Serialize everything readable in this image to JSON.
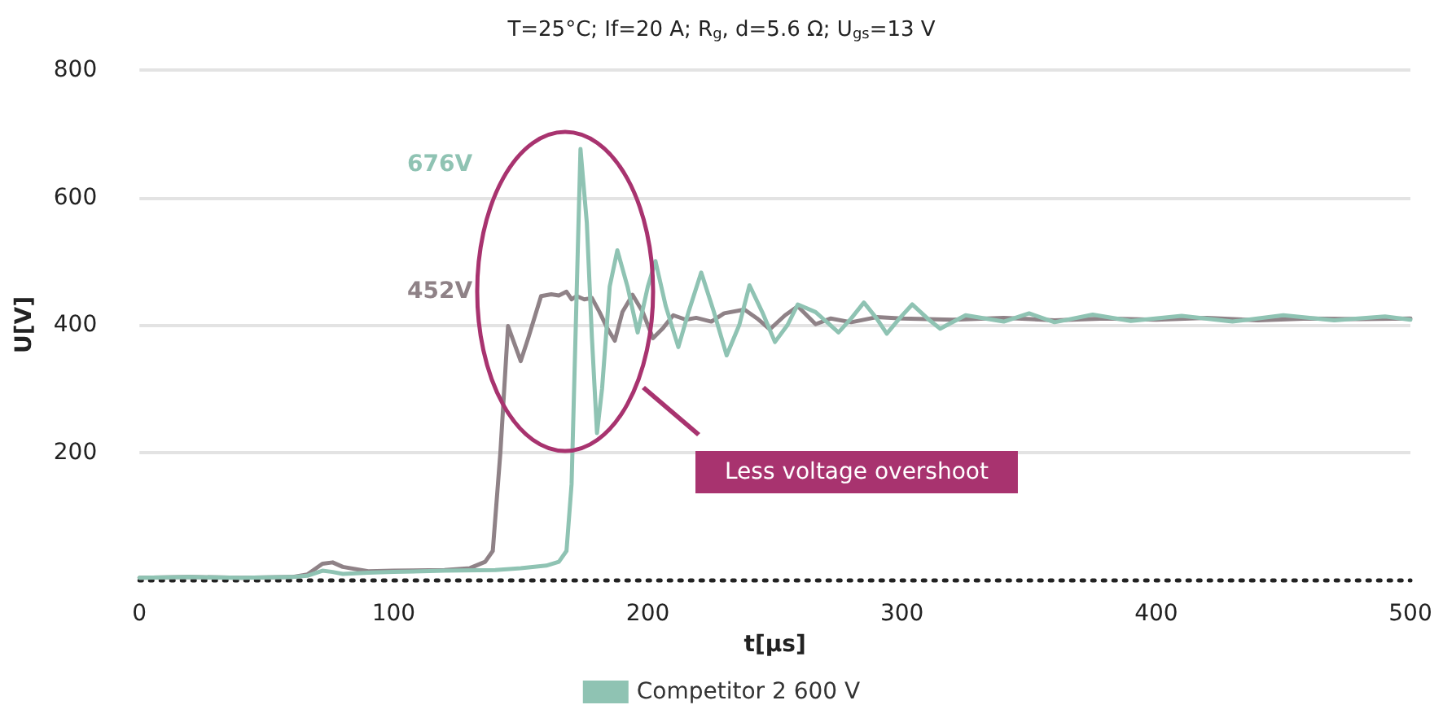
{
  "chart_data": {
    "type": "line",
    "title": "T=25°C; If=20 A; R$_{g}$, d=5.6 Ω; U$_{gs}$=13 V",
    "xlabel": "t[µs]",
    "ylabel": "U[V]",
    "xlim": [
      0,
      500
    ],
    "xticks": [
      0,
      100,
      200,
      300,
      400,
      500
    ],
    "ylim": [
      0,
      800
    ],
    "yticks": [
      200,
      400,
      600,
      800
    ],
    "grid": "y",
    "legend": "bottom",
    "marker": "none",
    "line_style": "solid",
    "annotations": [
      "676V",
      "452V",
      "Less voltage overshoot"
    ],
    "series": [
      {
        "color": "#8f8287",
        "x": [
          0,
          20,
          40,
          60,
          66,
          72,
          76,
          80,
          90,
          100,
          120,
          130,
          136,
          139,
          142,
          145,
          150,
          153,
          158,
          162,
          165,
          168,
          170,
          172,
          175,
          178,
          181,
          184,
          187,
          190,
          194,
          198,
          202,
          206,
          210,
          215,
          219,
          225,
          230,
          238,
          243,
          248,
          254,
          259,
          266,
          272,
          280,
          290,
          300,
          320,
          340,
          360,
          380,
          400,
          420,
          440,
          460,
          480,
          500
        ],
        "values": [
          3,
          4,
          3,
          4,
          8,
          25,
          27,
          20,
          13,
          14,
          15,
          18,
          28,
          45,
          200,
          398,
          343,
          380,
          445,
          448,
          446,
          452,
          440,
          445,
          440,
          442,
          420,
          395,
          375,
          420,
          447,
          420,
          379,
          395,
          415,
          408,
          411,
          405,
          418,
          424,
          410,
          393,
          415,
          429,
          401,
          410,
          404,
          412,
          410,
          408,
          411,
          407,
          410,
          408,
          411,
          407,
          410,
          409,
          410
        ]
      },
      {
        "name": "Competitor 2 600 V",
        "color": "#8fc3b3",
        "x": [
          0,
          20,
          40,
          60,
          66,
          72,
          76,
          80,
          90,
          100,
          120,
          140,
          150,
          160,
          165,
          168,
          170,
          172,
          173.5,
          176,
          178,
          180,
          182,
          185,
          188,
          192,
          196,
          200,
          203,
          207,
          212,
          216,
          221,
          226,
          231,
          236,
          240,
          245,
          250,
          255,
          259,
          266,
          275,
          280,
          285,
          290,
          294,
          299,
          304,
          310,
          315,
          325,
          340,
          350,
          360,
          375,
          390,
          410,
          430,
          450,
          470,
          490,
          500
        ],
        "values": [
          3,
          4,
          3,
          4,
          6,
          14,
          12,
          9,
          11,
          12,
          14,
          15,
          18,
          22,
          28,
          45,
          150,
          450,
          676,
          560,
          380,
          230,
          300,
          460,
          517,
          460,
          388,
          460,
          500,
          430,
          365,
          420,
          482,
          420,
          352,
          400,
          462,
          420,
          373,
          400,
          432,
          420,
          388,
          410,
          435,
          410,
          386,
          410,
          432,
          410,
          394,
          415,
          405,
          418,
          404,
          416,
          406,
          414,
          405,
          415,
          407,
          413,
          408
        ]
      }
    ]
  }
}
